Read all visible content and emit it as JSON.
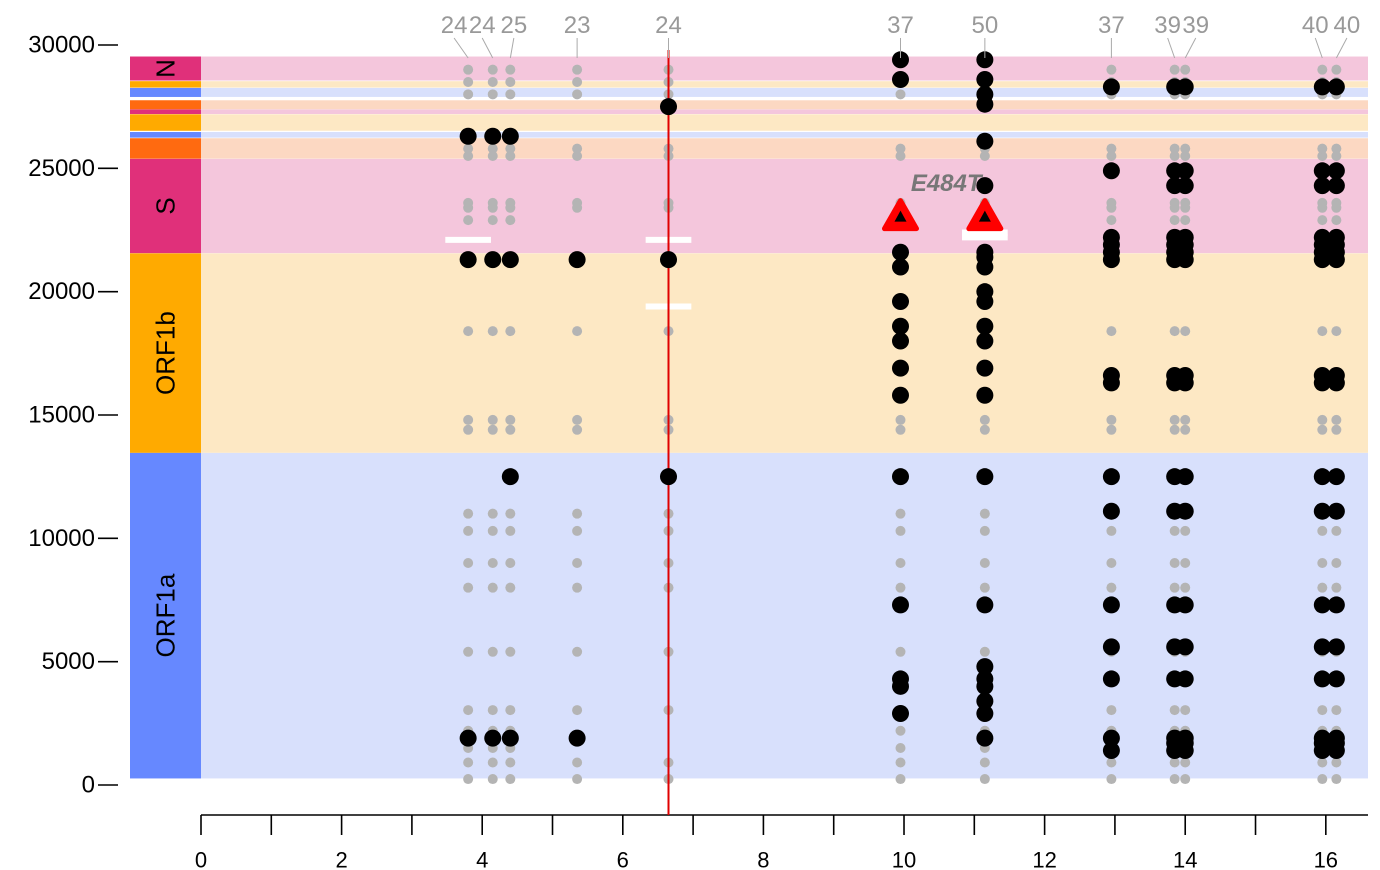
{
  "chart_data": {
    "type": "scatter",
    "title": "",
    "xlabel": "",
    "ylabel": "",
    "xlim": [
      0,
      16.6
    ],
    "ylim": [
      0,
      30000
    ],
    "x_ticks_major": [
      0,
      2,
      4,
      6,
      8,
      10,
      12,
      14,
      16
    ],
    "x_ticks_minor": [
      1,
      3,
      5,
      7,
      9,
      11,
      13,
      15
    ],
    "y_ticks": [
      0,
      5000,
      10000,
      15000,
      20000,
      25000,
      30000
    ],
    "genes": [
      {
        "name": "ORF1a",
        "start": 266,
        "end": 13468,
        "color": "#6688ff",
        "band": "#d8e0fc"
      },
      {
        "name": "ORF1b",
        "start": 13468,
        "end": 21555,
        "color": "#ffaa00",
        "band": "#fde8c4"
      },
      {
        "name": "S",
        "start": 21563,
        "end": 25384,
        "color": "#e0307a",
        "band": "#f4c6dc"
      },
      {
        "name": "",
        "start": 25393,
        "end": 26220,
        "color": "#ff6a10",
        "band": "#fcd8c2"
      },
      {
        "name": "",
        "start": 26245,
        "end": 26472,
        "color": "#6688ff",
        "band": "#d8e0fc"
      },
      {
        "name": "",
        "start": 26523,
        "end": 27191,
        "color": "#ffaa00",
        "band": "#fde8c4"
      },
      {
        "name": "",
        "start": 27202,
        "end": 27387,
        "color": "#e0307a",
        "band": "#f4c6dc"
      },
      {
        "name": "",
        "start": 27394,
        "end": 27759,
        "color": "#ff6a10",
        "band": "#fcd8c2"
      },
      {
        "name": "",
        "start": 27894,
        "end": 28259,
        "color": "#6688ff",
        "band": "#d8e0fc"
      },
      {
        "name": "",
        "start": 28274,
        "end": 28533,
        "color": "#ffaa00",
        "band": "#fde8c4"
      },
      {
        "name": "N",
        "start": 28560,
        "end": 29533,
        "color": "#e0307a",
        "band": "#f4c6dc"
      }
    ],
    "samples": [
      {
        "x": 3.8,
        "label": "24",
        "label_x": 3.6,
        "gray": [
          241,
          913,
          1500,
          2200,
          3037,
          5400,
          8000,
          9000,
          10300,
          11000,
          14400,
          14800,
          18400,
          21300,
          22900,
          23400,
          23600,
          25500,
          25800,
          28000,
          28500,
          29000
        ],
        "black": [
          1900,
          21300,
          26300
        ]
      },
      {
        "x": 4.15,
        "label": "24",
        "label_x": 4.0,
        "gray": [
          241,
          913,
          1500,
          2200,
          3037,
          5400,
          8000,
          9000,
          10300,
          11000,
          14400,
          14800,
          18400,
          21300,
          22900,
          23400,
          23600,
          25500,
          25800,
          28000,
          28500,
          29000
        ],
        "black": [
          1900,
          21300,
          26300
        ]
      },
      {
        "x": 4.4,
        "label": "25",
        "label_x": 4.45,
        "gray": [
          241,
          913,
          1500,
          2200,
          3037,
          5400,
          8000,
          9000,
          10300,
          11000,
          14400,
          14800,
          18400,
          21300,
          22900,
          23400,
          23600,
          25500,
          25800,
          28000,
          28500,
          29000
        ],
        "black": [
          1900,
          12500,
          21300,
          26300
        ]
      },
      {
        "x": 5.35,
        "label": "23",
        "label_x": 5.35,
        "gray": [
          241,
          913,
          3037,
          5400,
          8000,
          9000,
          10300,
          11000,
          14400,
          14800,
          18400,
          23400,
          23600,
          25500,
          25800,
          28000,
          28500,
          29000
        ],
        "black": [
          1900,
          21300
        ]
      },
      {
        "x": 6.65,
        "label": "24",
        "label_x": 6.65,
        "gray": [
          241,
          913,
          3037,
          5400,
          8000,
          9000,
          10300,
          11000,
          14400,
          14800,
          18400,
          23400,
          23600,
          25500,
          25800,
          28000,
          28500,
          29000
        ],
        "black": [
          12500,
          21300,
          27500
        ]
      },
      {
        "x": 9.95,
        "label": "37",
        "label_x": 9.95,
        "gray": [
          241,
          913,
          1500,
          2200,
          3037,
          5400,
          8000,
          9000,
          10300,
          11000,
          14400,
          14800,
          18400,
          22900,
          23400,
          23600,
          25500,
          25800,
          28000
        ],
        "black": [
          2900,
          4000,
          4300,
          7300,
          12500,
          15800,
          16900,
          18000,
          18600,
          19600,
          21000,
          21600,
          28600,
          29400
        ]
      },
      {
        "x": 11.15,
        "label": "50",
        "label_x": 11.15,
        "gray": [
          241,
          913,
          1500,
          2200,
          3037,
          5400,
          8000,
          9000,
          10300,
          11000,
          14400,
          14800,
          18400,
          22900,
          23400,
          23600,
          25500,
          25800,
          28000
        ],
        "black": [
          1900,
          2900,
          3400,
          4000,
          4300,
          4800,
          7300,
          12500,
          15800,
          16900,
          18000,
          18600,
          19600,
          20000,
          21000,
          21400,
          21600,
          24300,
          26100,
          27600,
          28000,
          28600,
          29400
        ]
      },
      {
        "x": 12.95,
        "label": "37",
        "label_x": 12.95,
        "gray": [
          241,
          913,
          1500,
          2200,
          3037,
          5400,
          8000,
          9000,
          10300,
          11000,
          14400,
          14800,
          18400,
          22900,
          23400,
          23600,
          25500,
          25800,
          28000,
          28500,
          29000
        ],
        "black": [
          1400,
          1900,
          4300,
          5600,
          7300,
          11100,
          12500,
          16300,
          16600,
          21300,
          21600,
          21900,
          22200,
          24900,
          28300
        ]
      },
      {
        "x": 13.85,
        "label": "39",
        "label_x": 13.75,
        "gray": [
          241,
          913,
          1500,
          2200,
          3037,
          5400,
          8000,
          9000,
          10300,
          11000,
          14400,
          14800,
          18400,
          22900,
          23400,
          23600,
          25500,
          25800,
          28000,
          28500,
          29000
        ],
        "black": [
          1400,
          1700,
          1900,
          4300,
          5600,
          7300,
          11100,
          12500,
          16300,
          16600,
          21300,
          21600,
          21900,
          22200,
          24300,
          24900,
          28300
        ]
      },
      {
        "x": 14.0,
        "label": "39",
        "label_x": 14.15,
        "gray": [
          241,
          913,
          1500,
          2200,
          3037,
          5400,
          8000,
          9000,
          10300,
          11000,
          14400,
          14800,
          18400,
          22900,
          23400,
          23600,
          25500,
          25800,
          28000,
          28500,
          29000
        ],
        "black": [
          1400,
          1700,
          1900,
          4300,
          5600,
          7300,
          11100,
          12500,
          16300,
          16600,
          21300,
          21600,
          21900,
          22200,
          24300,
          24900,
          28300
        ]
      },
      {
        "x": 15.95,
        "label": "40",
        "label_x": 15.85,
        "gray": [
          241,
          913,
          1500,
          2200,
          3037,
          5400,
          8000,
          9000,
          10300,
          11000,
          14400,
          14800,
          18400,
          22900,
          23400,
          23600,
          25500,
          25800,
          28000,
          28500,
          29000
        ],
        "black": [
          1400,
          1700,
          1900,
          4300,
          5600,
          7300,
          11100,
          12500,
          16300,
          16600,
          21300,
          21600,
          21900,
          22200,
          24300,
          24900,
          28300
        ]
      },
      {
        "x": 16.15,
        "label": "40",
        "label_x": 16.3,
        "gray": [
          241,
          913,
          1500,
          2200,
          3037,
          5400,
          8000,
          9000,
          10300,
          11000,
          14400,
          14800,
          18400,
          22900,
          23400,
          23600,
          25500,
          25800,
          28000,
          28500,
          29000
        ],
        "black": [
          1400,
          1700,
          1900,
          4300,
          5600,
          7300,
          11100,
          12500,
          16300,
          16600,
          21300,
          21600,
          21900,
          22200,
          24300,
          24900,
          28300
        ]
      }
    ],
    "deletions": [
      {
        "x": 3.8,
        "y": 22100,
        "width": 0.65
      },
      {
        "x": 6.65,
        "y": 22100,
        "width": 0.65
      },
      {
        "x": 6.65,
        "y": 19400,
        "width": 0.65
      },
      {
        "x": 11.15,
        "y": 22200,
        "width": 0.65
      },
      {
        "x": 11.15,
        "y": 22400,
        "width": 0.65
      }
    ],
    "highlights": [
      {
        "x": 9.95,
        "y": 23000
      },
      {
        "x": 11.15,
        "y": 23000
      }
    ],
    "annotation": {
      "text": "E484T",
      "x": 10.6,
      "y": 24400
    },
    "vertical_line": {
      "x": 6.65,
      "color": "#e00000"
    }
  }
}
